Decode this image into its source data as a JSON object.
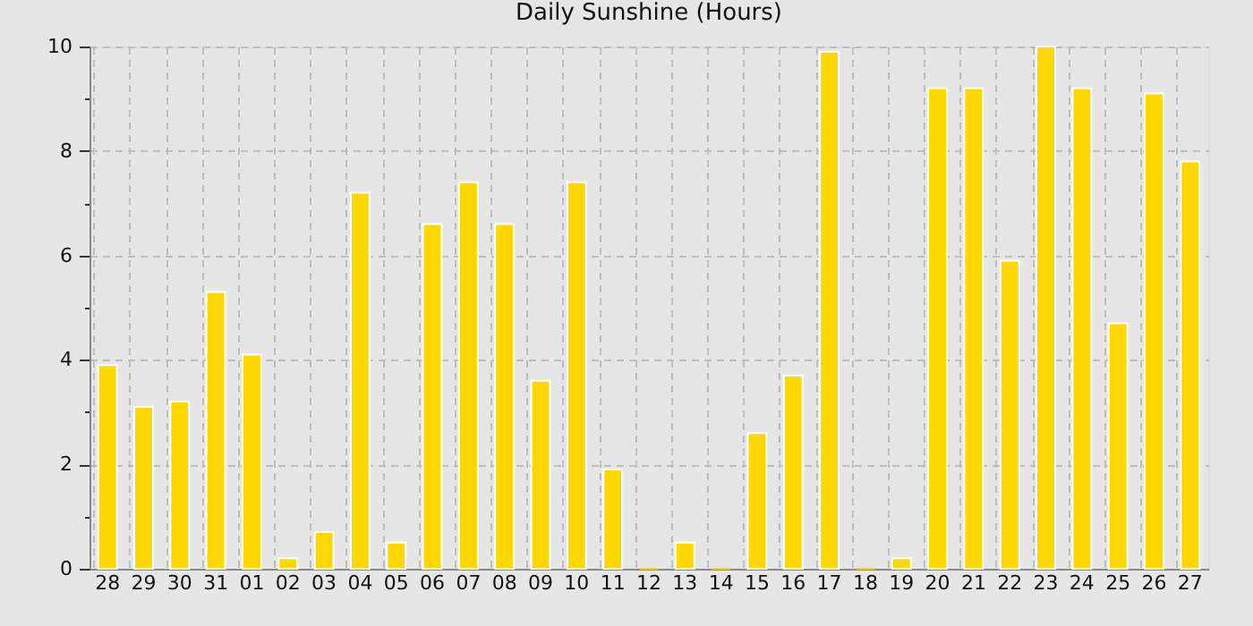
{
  "chart_data": {
    "type": "bar",
    "title": "Daily Sunshine (Hours)",
    "categories": [
      "28",
      "29",
      "30",
      "31",
      "01",
      "02",
      "03",
      "04",
      "05",
      "06",
      "07",
      "08",
      "09",
      "10",
      "11",
      "12",
      "13",
      "14",
      "15",
      "16",
      "17",
      "18",
      "19",
      "20",
      "21",
      "22",
      "23",
      "24",
      "25",
      "26",
      "27"
    ],
    "values": [
      3.9,
      3.1,
      3.2,
      5.3,
      4.1,
      0.2,
      0.7,
      7.2,
      0.5,
      6.6,
      7.4,
      6.6,
      3.6,
      7.4,
      1.9,
      0,
      0.5,
      0,
      2.6,
      3.7,
      9.9,
      0,
      0.2,
      9.2,
      9.2,
      5.9,
      10.0,
      9.2,
      4.7,
      9.1,
      7.8
    ],
    "color": "#ffd700",
    "ylim": [
      0,
      10
    ],
    "yticks": [
      0,
      {
        "value": 1,
        "label": null
      },
      2,
      {
        "value": 3,
        "label": null
      },
      4,
      {
        "value": 5,
        "label": null
      },
      6,
      {
        "value": 7,
        "label": null
      },
      8,
      {
        "value": 9,
        "label": null
      },
      10
    ],
    "grid": true
  }
}
